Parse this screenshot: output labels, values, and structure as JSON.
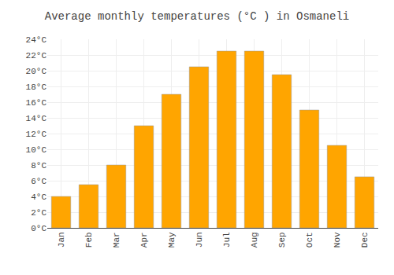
{
  "chart_data": {
    "type": "bar",
    "title": "Average monthly temperatures (°C ) in Osmaneli",
    "categories": [
      "Jan",
      "Feb",
      "Mar",
      "Apr",
      "May",
      "Jun",
      "Jul",
      "Aug",
      "Sep",
      "Oct",
      "Nov",
      "Dec"
    ],
    "values": [
      4.0,
      5.5,
      8.0,
      13.0,
      17.0,
      20.5,
      22.5,
      22.5,
      19.5,
      15.0,
      10.5,
      6.5
    ],
    "color": "#FFA500",
    "ylim": [
      0,
      24
    ],
    "yticks": [
      {
        "value": 0,
        "label": "0°C"
      },
      {
        "value": 2,
        "label": "2°C"
      },
      {
        "value": 4,
        "label": "4°C"
      },
      {
        "value": 6,
        "label": "6°C"
      },
      {
        "value": 8,
        "label": "8°C"
      },
      {
        "value": 10,
        "label": "10°C"
      },
      {
        "value": 12,
        "label": "12°C"
      },
      {
        "value": 14,
        "label": "14°C"
      },
      {
        "value": 16,
        "label": "16°C"
      },
      {
        "value": 18,
        "label": "18°C"
      },
      {
        "value": 20,
        "label": "20°C"
      },
      {
        "value": 22,
        "label": "22°C"
      },
      {
        "value": 24,
        "label": "24°C"
      }
    ],
    "grid": true
  }
}
